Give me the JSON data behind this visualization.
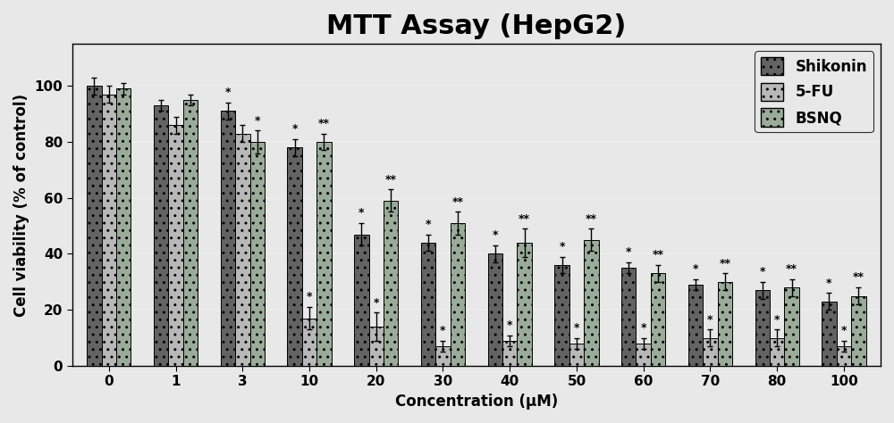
{
  "title": "MTT Assay (HepG2)",
  "xlabel": "Concentration (μM)",
  "ylabel": "Cell viability (% of control)",
  "categories": [
    "0",
    "1",
    "3",
    "10",
    "20",
    "30",
    "40",
    "50",
    "60",
    "70",
    "80",
    "100"
  ],
  "shikonin": [
    100,
    93,
    91,
    78,
    47,
    44,
    40,
    36,
    35,
    29,
    27,
    23
  ],
  "fivefu": [
    97,
    86,
    83,
    17,
    14,
    7,
    9,
    8,
    8,
    10,
    10,
    7
  ],
  "bsnq": [
    99,
    95,
    80,
    80,
    59,
    51,
    44,
    45,
    33,
    30,
    28,
    25
  ],
  "shikonin_err": [
    3,
    2,
    3,
    3,
    4,
    3,
    3,
    3,
    2,
    2,
    3,
    3
  ],
  "fivefu_err": [
    3,
    3,
    3,
    4,
    5,
    2,
    2,
    2,
    2,
    3,
    3,
    2
  ],
  "bsnq_err": [
    2,
    2,
    4,
    3,
    4,
    4,
    5,
    4,
    3,
    3,
    3,
    3
  ],
  "color_shikonin": "#636363",
  "color_fivefu": "#b8b8b8",
  "color_bsnq": "#9aab9a",
  "ylim": [
    0,
    115
  ],
  "yticks": [
    0,
    20,
    40,
    60,
    80,
    100
  ],
  "bar_width": 0.22,
  "figsize": [
    10.0,
    4.74
  ],
  "dpi": 100,
  "title_fontsize": 22,
  "axis_label_fontsize": 12,
  "tick_fontsize": 11,
  "legend_fontsize": 12,
  "star_shikonin": {
    "single": [
      "3",
      "10",
      "20",
      "30",
      "40",
      "50",
      "60",
      "70",
      "80",
      "100"
    ],
    "double": []
  },
  "star_fivefu": {
    "single": [
      "10",
      "20",
      "30",
      "40",
      "50",
      "60",
      "70",
      "80",
      "100"
    ],
    "double": []
  },
  "star_bsnq": {
    "single": [
      "3",
      "10",
      "20",
      "30",
      "40",
      "50",
      "60",
      "70",
      "80",
      "100"
    ],
    "double": [
      "10",
      "20",
      "30",
      "40",
      "50",
      "60",
      "70",
      "80",
      "100"
    ]
  }
}
